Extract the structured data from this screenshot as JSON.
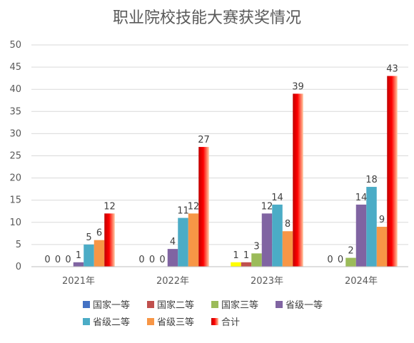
{
  "chart_data": {
    "type": "bar",
    "title": "职业院校技能大赛获奖情况",
    "categories": [
      "2021年",
      "2022年",
      "2023年",
      "2024年"
    ],
    "ylim": [
      0,
      50
    ],
    "yticks": [
      0,
      5,
      10,
      15,
      20,
      25,
      30,
      35,
      40,
      45,
      50
    ],
    "grid": true,
    "legend_position": "bottom",
    "series": [
      {
        "name": "国家一等",
        "color": "#4472C4",
        "values": [
          0,
          0,
          1,
          0
        ]
      },
      {
        "name": "国家二等",
        "color": "#C0504D",
        "values": [
          0,
          0,
          1,
          0
        ]
      },
      {
        "name": "国家三等",
        "color": "#9BBB59",
        "values": [
          0,
          0,
          3,
          2
        ]
      },
      {
        "name": "省级一等",
        "color": "#8064A2",
        "values": [
          1,
          4,
          12,
          14
        ]
      },
      {
        "name": "省级二等",
        "color": "#4BACC6",
        "values": [
          5,
          11,
          14,
          18
        ]
      },
      {
        "name": "省级三等",
        "color": "#F79646",
        "values": [
          6,
          12,
          8,
          9
        ]
      },
      {
        "name": "合计",
        "color": "#FF0000",
        "values": [
          12,
          27,
          39,
          43
        ]
      }
    ],
    "data_labels": true
  }
}
